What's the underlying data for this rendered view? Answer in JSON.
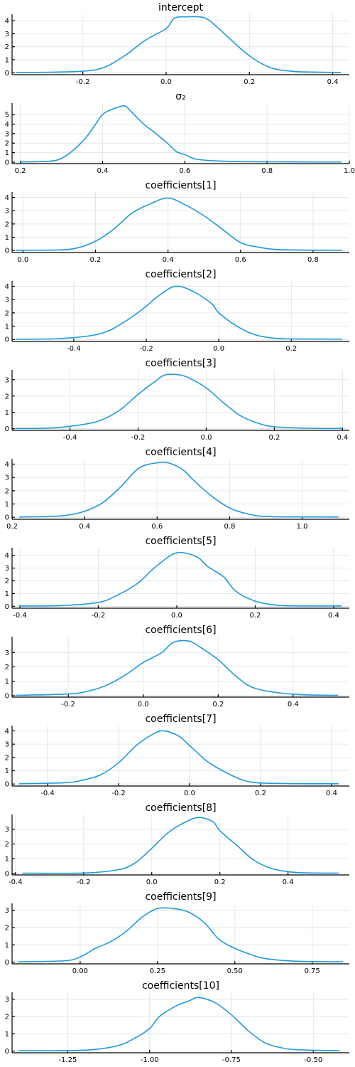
{
  "figure": {
    "line_color": "#1f9ae0"
  },
  "chart_data": [
    {
      "type": "line",
      "title": "intercept",
      "xlabel": "",
      "ylabel": "",
      "xlim": [
        -0.37,
        0.44
      ],
      "ylim": [
        -0.15,
        4.5
      ],
      "xticks": [
        -0.2,
        0.0,
        0.2,
        0.4
      ],
      "xtick_labels": [
        "-0.2",
        "0.0",
        "0.2",
        "0.4"
      ],
      "yticks": [
        0,
        1,
        2,
        3,
        4
      ],
      "ytick_labels": [
        "0",
        "1",
        "2",
        "3",
        "4"
      ],
      "grid": true,
      "series": [
        {
          "x": [
            -0.36,
            -0.3,
            -0.2,
            -0.15,
            -0.1,
            -0.05,
            0.0,
            0.02,
            0.05,
            0.08,
            0.1,
            0.13,
            0.15,
            0.2,
            0.25,
            0.3,
            0.35,
            0.42
          ],
          "y": [
            0.02,
            0.03,
            0.12,
            0.4,
            1.3,
            2.5,
            3.4,
            4.2,
            4.3,
            4.3,
            4.1,
            3.3,
            2.7,
            1.3,
            0.4,
            0.12,
            0.05,
            0.02
          ]
        }
      ]
    },
    {
      "type": "line",
      "title": "σ₂",
      "xlabel": "",
      "ylabel": "",
      "xlim": [
        0.18,
        1.0
      ],
      "ylim": [
        -0.15,
        6.2
      ],
      "xticks": [
        0.2,
        0.4,
        0.6,
        0.8,
        1.0
      ],
      "xtick_labels": [
        "0.2",
        "0.4",
        "0.6",
        "0.8",
        "1.0"
      ],
      "yticks": [
        0,
        1,
        2,
        3,
        4,
        5
      ],
      "ytick_labels": [
        "0",
        "1",
        "2",
        "3",
        "4",
        "5"
      ],
      "grid": true,
      "series": [
        {
          "x": [
            0.2,
            0.27,
            0.3,
            0.33,
            0.36,
            0.38,
            0.4,
            0.42,
            0.44,
            0.455,
            0.47,
            0.5,
            0.53,
            0.56,
            0.58,
            0.6,
            0.63,
            0.7,
            0.8,
            0.9,
            0.98
          ],
          "y": [
            0.02,
            0.1,
            0.4,
            1.3,
            2.6,
            3.8,
            5.0,
            5.5,
            5.8,
            5.9,
            5.3,
            4.0,
            3.0,
            1.9,
            1.1,
            0.8,
            0.3,
            0.1,
            0.04,
            0.02,
            0.02
          ]
        }
      ]
    },
    {
      "type": "line",
      "title": "coefficients[1]",
      "xlabel": "",
      "ylabel": "",
      "xlim": [
        -0.03,
        0.9
      ],
      "ylim": [
        -0.15,
        4.4
      ],
      "xticks": [
        0.0,
        0.2,
        0.4,
        0.6,
        0.8
      ],
      "xtick_labels": [
        "0.0",
        "0.2",
        "0.4",
        "0.6",
        "0.8"
      ],
      "yticks": [
        0,
        1,
        2,
        3,
        4
      ],
      "ytick_labels": [
        "0",
        "1",
        "2",
        "3",
        "4"
      ],
      "grid": true,
      "series": [
        {
          "x": [
            -0.02,
            0.1,
            0.15,
            0.2,
            0.25,
            0.3,
            0.35,
            0.4,
            0.45,
            0.5,
            0.55,
            0.6,
            0.65,
            0.7,
            0.8,
            0.88
          ],
          "y": [
            0.02,
            0.05,
            0.2,
            0.7,
            1.6,
            2.8,
            3.5,
            3.95,
            3.4,
            2.6,
            1.6,
            0.6,
            0.25,
            0.08,
            0.03,
            0.02
          ]
        }
      ]
    },
    {
      "type": "line",
      "title": "coefficients[2]",
      "xlabel": "",
      "ylabel": "",
      "xlim": [
        -0.57,
        0.36
      ],
      "ylim": [
        -0.15,
        4.4
      ],
      "xticks": [
        -0.4,
        -0.2,
        0.0,
        0.2
      ],
      "xtick_labels": [
        "-0.4",
        "-0.2",
        "0.0",
        "0.2"
      ],
      "yticks": [
        0,
        1,
        2,
        3,
        4
      ],
      "ytick_labels": [
        "0",
        "1",
        "2",
        "3",
        "4"
      ],
      "grid": true,
      "series": [
        {
          "x": [
            -0.56,
            -0.45,
            -0.35,
            -0.3,
            -0.25,
            -0.2,
            -0.17,
            -0.12,
            -0.07,
            -0.02,
            0.0,
            0.05,
            0.1,
            0.15,
            0.2,
            0.34
          ],
          "y": [
            0.02,
            0.05,
            0.3,
            0.7,
            1.5,
            2.5,
            3.2,
            4.0,
            3.6,
            2.7,
            2.0,
            1.0,
            0.35,
            0.1,
            0.04,
            0.02
          ]
        }
      ]
    },
    {
      "type": "line",
      "title": "coefficients[3]",
      "xlabel": "",
      "ylabel": "",
      "xlim": [
        -0.57,
        0.42
      ],
      "ylim": [
        -0.1,
        3.6
      ],
      "xticks": [
        -0.4,
        -0.2,
        0.0,
        0.2,
        0.4
      ],
      "xtick_labels": [
        "-0.4",
        "-0.2",
        "0.0",
        "0.2",
        "0.4"
      ],
      "yticks": [
        0,
        1,
        2,
        3
      ],
      "ytick_labels": [
        "0",
        "1",
        "2",
        "3"
      ],
      "grid": true,
      "series": [
        {
          "x": [
            -0.56,
            -0.45,
            -0.35,
            -0.3,
            -0.25,
            -0.2,
            -0.15,
            -0.12,
            -0.08,
            -0.05,
            0.0,
            0.05,
            0.1,
            0.15,
            0.2,
            0.3,
            0.4
          ],
          "y": [
            0.02,
            0.05,
            0.3,
            0.6,
            1.2,
            2.1,
            2.9,
            3.3,
            3.3,
            3.1,
            2.5,
            1.6,
            0.8,
            0.35,
            0.12,
            0.03,
            0.02
          ]
        }
      ]
    },
    {
      "type": "line",
      "title": "coefficients[4]",
      "xlabel": "",
      "ylabel": "",
      "xlim": [
        0.2,
        1.13
      ],
      "ylim": [
        -0.15,
        4.4
      ],
      "xticks": [
        0.2,
        0.4,
        0.6,
        0.8,
        1.0
      ],
      "xtick_labels": [
        "0.2",
        "0.4",
        "0.6",
        "0.8",
        "1.0"
      ],
      "yticks": [
        0,
        1,
        2,
        3,
        4
      ],
      "ytick_labels": [
        "0",
        "1",
        "2",
        "3",
        "4"
      ],
      "grid": true,
      "series": [
        {
          "x": [
            0.22,
            0.3,
            0.35,
            0.4,
            0.45,
            0.5,
            0.55,
            0.6,
            0.63,
            0.67,
            0.7,
            0.75,
            0.8,
            0.85,
            0.9,
            1.0,
            1.1
          ],
          "y": [
            0.02,
            0.06,
            0.15,
            0.45,
            1.1,
            2.3,
            3.7,
            4.1,
            4.1,
            3.6,
            2.8,
            1.6,
            0.7,
            0.25,
            0.06,
            0.03,
            0.02
          ]
        }
      ]
    },
    {
      "type": "line",
      "title": "coefficients[5]",
      "xlabel": "",
      "ylabel": "",
      "xlim": [
        -0.42,
        0.44
      ],
      "ylim": [
        -0.15,
        4.6
      ],
      "xticks": [
        -0.4,
        -0.2,
        0.0,
        0.2,
        0.4
      ],
      "xtick_labels": [
        "-0.4",
        "-0.2",
        "0.0",
        "0.2",
        "0.4"
      ],
      "yticks": [
        0,
        1,
        2,
        3,
        4
      ],
      "ytick_labels": [
        "0",
        "1",
        "2",
        "3",
        "4"
      ],
      "grid": true,
      "series": [
        {
          "x": [
            -0.4,
            -0.3,
            -0.2,
            -0.15,
            -0.1,
            -0.05,
            0.0,
            0.05,
            0.08,
            0.12,
            0.15,
            0.2,
            0.25,
            0.3,
            0.42
          ],
          "y": [
            0.02,
            0.05,
            0.3,
            0.9,
            1.8,
            3.2,
            4.2,
            3.9,
            3.1,
            2.3,
            1.2,
            0.4,
            0.1,
            0.03,
            0.02
          ]
        }
      ]
    },
    {
      "type": "line",
      "title": "coefficients[6]",
      "xlabel": "",
      "ylabel": "",
      "xlim": [
        -0.35,
        0.55
      ],
      "ylim": [
        -0.1,
        4.1
      ],
      "xticks": [
        -0.2,
        0.0,
        0.2,
        0.4
      ],
      "xtick_labels": [
        "-0.2",
        "0.0",
        "0.2",
        "0.4"
      ],
      "yticks": [
        0,
        1,
        2,
        3
      ],
      "ytick_labels": [
        "0",
        "1",
        "2",
        "3"
      ],
      "grid": true,
      "series": [
        {
          "x": [
            -0.34,
            -0.2,
            -0.15,
            -0.1,
            -0.05,
            0.0,
            0.05,
            0.08,
            0.12,
            0.15,
            0.2,
            0.25,
            0.3,
            0.4,
            0.52
          ],
          "y": [
            0.02,
            0.12,
            0.3,
            0.7,
            1.4,
            2.3,
            3.0,
            3.7,
            3.8,
            3.4,
            2.5,
            1.3,
            0.5,
            0.1,
            0.02
          ]
        }
      ]
    },
    {
      "type": "line",
      "title": "coefficients[7]",
      "xlabel": "",
      "ylabel": "",
      "xlim": [
        -0.5,
        0.45
      ],
      "ylim": [
        -0.15,
        4.4
      ],
      "xticks": [
        -0.4,
        -0.2,
        0.0,
        0.2,
        0.4
      ],
      "xtick_labels": [
        "-0.4",
        "-0.2",
        "0.0",
        "0.2",
        "0.4"
      ],
      "yticks": [
        0,
        1,
        2,
        3,
        4
      ],
      "ytick_labels": [
        "0",
        "1",
        "2",
        "3",
        "4"
      ],
      "grid": true,
      "series": [
        {
          "x": [
            -0.48,
            -0.35,
            -0.3,
            -0.25,
            -0.2,
            -0.15,
            -0.1,
            -0.07,
            -0.03,
            0.0,
            0.05,
            0.1,
            0.15,
            0.2,
            0.3,
            0.42
          ],
          "y": [
            0.02,
            0.1,
            0.3,
            0.7,
            1.6,
            2.9,
            3.8,
            4.0,
            3.6,
            2.9,
            1.7,
            0.9,
            0.3,
            0.08,
            0.03,
            0.02
          ]
        }
      ]
    },
    {
      "type": "line",
      "title": "coefficients[8]",
      "xlabel": "",
      "ylabel": "",
      "xlim": [
        -0.41,
        0.58
      ],
      "ylim": [
        -0.1,
        4.0
      ],
      "xticks": [
        -0.4,
        -0.2,
        0.0,
        0.2,
        0.4
      ],
      "xtick_labels": [
        "-0.4",
        "-0.2",
        "0.0",
        "0.2",
        "0.4"
      ],
      "yticks": [
        0,
        1,
        2,
        3
      ],
      "ytick_labels": [
        "0",
        "1",
        "2",
        "3"
      ],
      "grid": true,
      "series": [
        {
          "x": [
            -0.38,
            -0.2,
            -0.1,
            -0.05,
            0.0,
            0.05,
            0.1,
            0.14,
            0.18,
            0.2,
            0.25,
            0.3,
            0.35,
            0.4,
            0.45,
            0.55
          ],
          "y": [
            0.02,
            0.03,
            0.25,
            0.7,
            1.7,
            2.8,
            3.5,
            3.8,
            3.5,
            2.9,
            1.9,
            0.9,
            0.35,
            0.12,
            0.04,
            0.02
          ]
        }
      ]
    },
    {
      "type": "line",
      "title": "coefficients[9]",
      "xlabel": "",
      "ylabel": "",
      "xlim": [
        -0.22,
        0.87
      ],
      "ylim": [
        -0.1,
        3.4
      ],
      "xticks": [
        0.0,
        0.25,
        0.5,
        0.75
      ],
      "xtick_labels": [
        "0.00",
        "0.25",
        "0.50",
        "0.75"
      ],
      "yticks": [
        0,
        1,
        2,
        3
      ],
      "ytick_labels": [
        "0",
        "1",
        "2",
        "3"
      ],
      "grid": true,
      "series": [
        {
          "x": [
            -0.2,
            -0.05,
            0.0,
            0.05,
            0.1,
            0.15,
            0.2,
            0.25,
            0.3,
            0.35,
            0.4,
            0.45,
            0.5,
            0.55,
            0.6,
            0.7,
            0.85
          ],
          "y": [
            0.02,
            0.08,
            0.3,
            0.8,
            1.2,
            1.8,
            2.6,
            3.1,
            3.1,
            2.9,
            2.3,
            1.3,
            0.8,
            0.45,
            0.2,
            0.05,
            0.02
          ]
        }
      ]
    },
    {
      "type": "line",
      "title": "coefficients[10]",
      "xlabel": "",
      "ylabel": "",
      "xlim": [
        -1.42,
        -0.39
      ],
      "ylim": [
        -0.1,
        3.4
      ],
      "xticks": [
        -1.25,
        -1.0,
        -0.75,
        -0.5
      ],
      "xtick_labels": [
        "-1.25",
        "-1.00",
        "-0.75",
        "-0.50"
      ],
      "yticks": [
        0,
        1,
        2,
        3
      ],
      "ytick_labels": [
        "0",
        "1",
        "2",
        "3"
      ],
      "grid": true,
      "series": [
        {
          "x": [
            -1.4,
            -1.2,
            -1.1,
            -1.05,
            -1.0,
            -0.97,
            -0.92,
            -0.88,
            -0.85,
            -0.8,
            -0.75,
            -0.7,
            -0.65,
            -0.6,
            -0.55,
            -0.42
          ],
          "y": [
            0.02,
            0.05,
            0.3,
            0.7,
            1.3,
            2.0,
            2.6,
            2.9,
            3.1,
            2.8,
            2.1,
            1.2,
            0.5,
            0.2,
            0.08,
            0.02
          ]
        }
      ]
    }
  ]
}
